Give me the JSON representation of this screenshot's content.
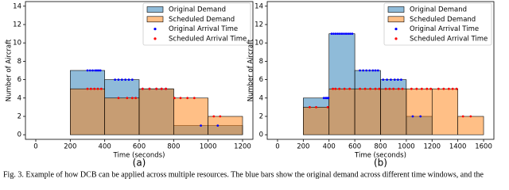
{
  "caption": "Fig. 3.   Example of how DCB can be applied across multiple resources. The blue bars show the original demand across different time windows, and the",
  "chart_data": [
    {
      "type": "histogram",
      "panel": "(a)",
      "xlabel": "Time (seconds)",
      "ylabel": "Number of Aircraft",
      "bins": [
        200,
        400,
        600,
        800,
        1000,
        1200
      ],
      "xlim": [
        -60,
        1260
      ],
      "xticks": [
        0,
        200,
        400,
        600,
        800,
        1000,
        1200
      ],
      "ylim": [
        -0.5,
        14.5
      ],
      "yticks": [
        0,
        2,
        4,
        6,
        8,
        10,
        12,
        14
      ],
      "legend": "upper right",
      "series": [
        {
          "name": "Original Demand",
          "color": "#1f77b4",
          "values": [
            7,
            6,
            5,
            1,
            1
          ]
        },
        {
          "name": "Scheduled Demand",
          "color": "#ff7f0e",
          "values": [
            5,
            4,
            5,
            4,
            2
          ]
        },
        {
          "name": "Original Arrival Time",
          "color": "#0000ff",
          "x": [
            300,
            315,
            330,
            345,
            355,
            365,
            375,
            460,
            480,
            500,
            520,
            540,
            560,
            620,
            660,
            700,
            730,
            755,
            958,
            1056
          ],
          "values": [
            7,
            7,
            7,
            7,
            7,
            7,
            7,
            6,
            6,
            6,
            6,
            6,
            6,
            5,
            5,
            5,
            5,
            5,
            1,
            1
          ]
        },
        {
          "name": "Scheduled Arrival Time",
          "color": "#ff0000",
          "x": [
            300,
            320,
            340,
            360,
            380,
            480,
            530,
            560,
            580,
            620,
            660,
            700,
            730,
            755,
            805,
            840,
            880,
            920,
            1033,
            1070
          ],
          "values": [
            5,
            5,
            5,
            5,
            5,
            4,
            4,
            4,
            4,
            5,
            5,
            5,
            5,
            5,
            4,
            4,
            4,
            4,
            2,
            2
          ]
        }
      ]
    },
    {
      "type": "histogram",
      "panel": "(b)",
      "xlabel": "Time (seconds)",
      "ylabel": "Number of Aircraft",
      "bins": [
        200,
        400,
        600,
        800,
        1000,
        1200,
        1400,
        1600
      ],
      "xlim": [
        -80,
        1680
      ],
      "xticks": [
        0,
        200,
        400,
        600,
        800,
        1000,
        1200,
        1400,
        1600
      ],
      "ylim": [
        -0.5,
        14.5
      ],
      "yticks": [
        0,
        2,
        4,
        6,
        8,
        10,
        12,
        14
      ],
      "legend": "upper right",
      "series": [
        {
          "name": "Original Demand",
          "color": "#1f77b4",
          "values": [
            4,
            11,
            7,
            6,
            2,
            0,
            0
          ]
        },
        {
          "name": "Scheduled Demand",
          "color": "#ff7f0e",
          "values": [
            3,
            5,
            5,
            5,
            5,
            5,
            2
          ]
        },
        {
          "name": "Original Arrival Time",
          "color": "#0000ff",
          "x": [
            360,
            375,
            385,
            395,
            420,
            436,
            452,
            468,
            484,
            500,
            516,
            532,
            548,
            564,
            580,
            640,
            665,
            690,
            715,
            740,
            760,
            780,
            820,
            850,
            880,
            910,
            935,
            960,
            1050,
            1110
          ],
          "values": [
            4,
            4,
            4,
            4,
            11,
            11,
            11,
            11,
            11,
            11,
            11,
            11,
            11,
            11,
            11,
            7,
            7,
            7,
            7,
            7,
            7,
            7,
            6,
            6,
            6,
            6,
            6,
            6,
            2,
            2
          ]
        },
        {
          "name": "Scheduled Arrival Time",
          "color": "#ff0000",
          "x": [
            250,
            300,
            390,
            430,
            450,
            480,
            520,
            560,
            640,
            680,
            720,
            760,
            790,
            840,
            870,
            900,
            940,
            970,
            1040,
            1080,
            1120,
            1160,
            1190,
            1250,
            1290,
            1330,
            1360,
            1390,
            1440,
            1500
          ],
          "values": [
            3,
            3,
            3,
            5,
            5,
            5,
            5,
            5,
            5,
            5,
            5,
            5,
            5,
            5,
            5,
            5,
            5,
            5,
            5,
            5,
            5,
            5,
            5,
            5,
            5,
            5,
            5,
            5,
            2,
            2
          ]
        }
      ]
    }
  ]
}
